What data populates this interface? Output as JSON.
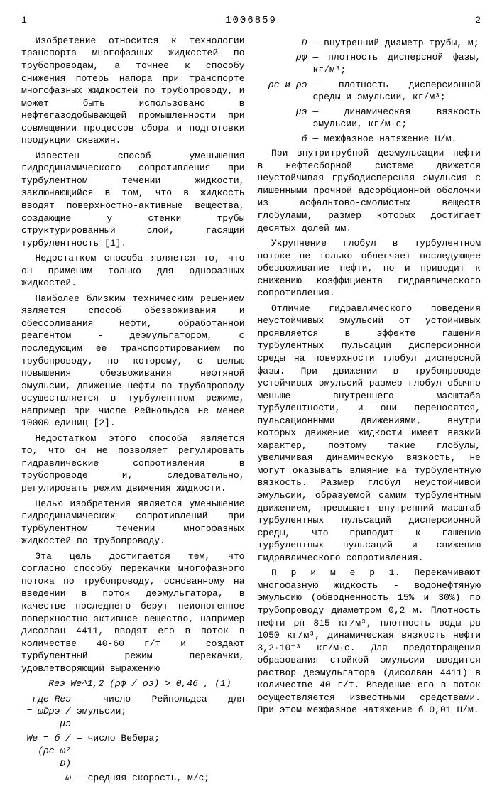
{
  "doc_number": "1006859",
  "page_left": "1",
  "page_right": "2",
  "left": {
    "p1": "Изобретение относится к технологии транспорта многофазных жидкостей по трубопроводам, а точнее к способу снижения потерь напора при транспорте многофазных жидкостей по трубопроводу, и может быть использовано в нефтегазодобывающей промышленности при совмещении процессов сбора и подготовки продукции скважин.",
    "p2": "Известен способ уменьшения гидродинамического сопротивления при турбулентном течении жидкости, заключающийся в том, что в жидкость вводят поверхностно-активные вещества, создающие у стенки трубы структурированный слой, гасящий турбулентность [1].",
    "p3": "Недостатком способа является то, что он применим только для однофазных жидкостей.",
    "p4": "Наиболее близким техническим решением является способ обезвоживания и обессоливания нефти, обработанной реагентом - деэмульгатором, с последующим ее транспортированием по трубопроводу, по которому, с целью повышения обезвоживания нефтяной эмульсии, движение нефти по трубопроводу осуществляется в турбулентном режиме, например при числе Рейнольдса не менее 10000 единиц [2].",
    "p5": "Недостатком этого способа является то, что он не позволяет регулировать гидравлические сопротивления в трубопроводе и, следовательно, регулировать режим движения жидкости.",
    "p6": "Целью изобретения является уменьшение гидродинамических сопротивлений при турбулентном течении многофазных жидкостей по трубопроводу.",
    "p7": "Эта цель достигается тем, что согласно способу перекачки многофазного потока по трубопроводу, основанному на введении в поток деэмульгатора, в качестве последнего берут неионогенное поверхностно-активное вещество, например дисолван 4411, вводят его в поток в количестве 40-60 г/т и создают турбулентный режим перекачки, удовлетворяющий выражению",
    "formula1": "Reэ Wе^1,2 (ρф / ρэ) > 0,46 ,  (1)",
    "defs": [
      {
        "sym": "где Reэ = ωDρэ / μэ",
        "txt": "— число Рейнольдса для эмульсии;"
      },
      {
        "sym": "Wе = б / (ρс ω² D)",
        "txt": "— число Вебера;"
      },
      {
        "sym": "ω",
        "txt": "— средняя скорость, м/с;"
      }
    ]
  },
  "right": {
    "defs": [
      {
        "sym": "D",
        "txt": "— внутренний диаметр трубы, м;"
      },
      {
        "sym": "ρф",
        "txt": "— плотность дисперсной фазы, кг/м³;"
      },
      {
        "sym": "ρс и ρэ",
        "txt": "— плотность дисперсионной среды и эмульсии, кг/м³;"
      },
      {
        "sym": "μэ",
        "txt": "— динамическая вязкость эмульсии, кг/м·с;"
      },
      {
        "sym": "б",
        "txt": "— межфазное натяжение Н/м."
      }
    ],
    "p1": "При внутритрубной деэмульсации нефти в нефтесборной системе движется неустойчивая грубодисперсная эмульсия с лишенными прочной адсорбционной оболочки из асфальтово-смолистых веществ глобулами, размер которых достигает десятых долей мм.",
    "p2": "Укрупнение глобул в турбулентном потоке не только облегчает последующее обезвоживание нефти, но и приводит к снижению коэффициента гидравлического сопротивления.",
    "p3": "Отличие гидравлического поведения неустойчивых эмульсий от устойчивых проявляется в эффекте гашения турбулентных пульсаций дисперсионной среды на поверхности глобул дисперсной фазы. При движении в трубопроводе устойчивых эмульсий размер глобул обычно меньше внутреннего масштаба турбулентности, и они переносятся, пульсационными движениями, внутри которых движение жидкости имеет вязкий характер, поэтому такие глобулы, увеличивая динамическую вязкость, не могут оказывать влияние на турбулентную вязкость. Размер глобул неустойчивой эмульсии, образуемой самим турбулентным движением, превышает внутренний масштаб турбулентных пульсаций дисперсионной среды, что приводит к гашению турбулентных пульсаций и снижению гидравлического сопротивления.",
    "p4": "П р и м е р  1. Перекачивают многофазную жидкость - водонефтяную эмульсию (обводненность 15% и 30%) по трубопроводу диаметром 0,2 м. Плотность нефти ρн 815 кг/м³, плотность воды ρв 1050 кг/м³, динамическая вязкость нефти 3,2·10⁻³ кг/м·с. Для предотвращения образования стойкой эмульсии вводится раствор деэмульгатора (дисолван 4411) в количестве 40 г/т. Введение его в поток осуществляется известными средствами. При этом межфазное натяжение б 0,01 Н/м."
  }
}
